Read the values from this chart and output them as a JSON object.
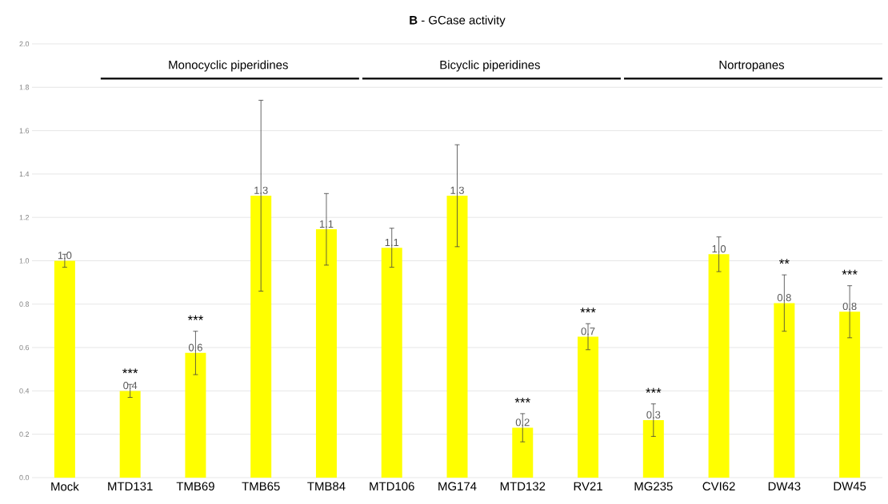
{
  "chart_data": {
    "type": "bar",
    "title": "**B** - GCase activity",
    "categories": [
      "Mock",
      "MTD131",
      "TMB69",
      "TMB65",
      "TMB84",
      "MTD106",
      "MG174",
      "MTD132",
      "RV21",
      "MG235",
      "CVI62",
      "DW43",
      "DW45"
    ],
    "values": [
      1.0,
      0.4,
      0.575,
      1.3,
      1.145,
      1.06,
      1.3,
      0.23,
      0.65,
      0.265,
      1.03,
      0.805,
      0.765
    ],
    "errors": [
      0.03,
      0.03,
      0.1,
      0.44,
      0.165,
      0.09,
      0.235,
      0.065,
      0.06,
      0.075,
      0.08,
      0.13,
      0.12
    ],
    "value_labels": [
      "1.0",
      "0.4",
      "0.6",
      "1.3",
      "1.1",
      "1.1",
      "1.3",
      "0.2",
      "0.7",
      "0.3",
      "1.0",
      "0.8",
      "0.8"
    ],
    "color": "#ffff00",
    "ylim": [
      0,
      2.0
    ],
    "yticks": [
      {
        "value": 0,
        "label": "0.0"
      },
      {
        "value": 0.2,
        "label": "0.2"
      },
      {
        "value": 0.4,
        "label": "0.4"
      },
      {
        "value": 0.6,
        "label": "0.6"
      },
      {
        "value": 0.8,
        "label": "0.8"
      },
      {
        "value": 1.0,
        "label": "1.0"
      },
      {
        "value": 1.2,
        "label": "1.2"
      },
      {
        "value": 1.4,
        "label": "1.4"
      },
      {
        "value": 1.6,
        "label": "1.6"
      },
      {
        "value": 1.8,
        "label": "1.8"
      },
      {
        "value": 2.0,
        "label": "2.0"
      }
    ],
    "grid": "y",
    "annotations": [
      "Monocyclic piperidines",
      "Bicyclic piperidines",
      "Nortropanes",
      "***",
      "***",
      "***",
      "***",
      "***",
      "**",
      "***"
    ]
  }
}
